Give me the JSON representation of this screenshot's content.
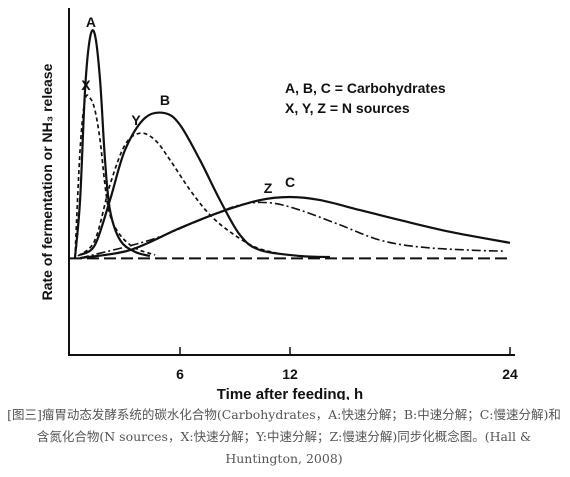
{
  "chart_data": {
    "type": "line",
    "xlabel": "Time after feeding, h",
    "ylabel": "Rate of fermentation or NH₃ release",
    "annotations": [
      "A, B, C = Carbohydrates",
      "X, Y, Z = N sources"
    ],
    "xlim": [
      0,
      24
    ],
    "xticks": [
      6,
      12,
      24
    ],
    "ylim": [
      0,
      100
    ],
    "reference_line": {
      "y": 28,
      "style": "longdash"
    },
    "series": [
      {
        "name": "A",
        "color": "#111111",
        "style": "solid",
        "x": [
          0.27,
          0.55,
          0.82,
          1.09,
          1.36,
          1.64,
          1.91,
          2.18,
          2.73,
          3.55,
          4.36
        ],
        "values": [
          28.1,
          44.9,
          76.8,
          91.9,
          92.8,
          79.7,
          56.5,
          42.0,
          33.3,
          29.9,
          28.7
        ]
      },
      {
        "name": "X",
        "color": "#111111",
        "style": "dotted",
        "x": [
          0.27,
          0.55,
          0.82,
          1.09,
          1.36,
          1.64,
          1.91,
          2.18,
          2.73,
          3.55,
          4.64
        ],
        "values": [
          28.1,
          59.4,
          73.9,
          74.5,
          71.0,
          62.3,
          49.3,
          40.6,
          34.8,
          31.0,
          29.0
        ]
      },
      {
        "name": "B",
        "color": "#111111",
        "style": "solid",
        "x": [
          0.55,
          1.36,
          2.18,
          3.0,
          4.09,
          5.18,
          6.0,
          7.09,
          8.18,
          9.27,
          10.37,
          12.55,
          14.18
        ],
        "values": [
          29.0,
          31.9,
          44.9,
          59.4,
          68.7,
          70.1,
          66.7,
          56.5,
          44.9,
          34.8,
          30.4,
          28.7,
          28.4
        ]
      },
      {
        "name": "Y",
        "color": "#111111",
        "style": "dotted",
        "x": [
          0.44,
          1.36,
          2.18,
          3.0,
          3.82,
          4.64,
          5.46,
          6.55,
          7.64,
          8.73,
          10.09,
          11.46
        ],
        "values": [
          28.7,
          33.3,
          49.3,
          60.9,
          64.3,
          62.3,
          56.5,
          47.8,
          40.6,
          35.7,
          31.3,
          29.3
        ]
      },
      {
        "name": "Z",
        "color": "#111111",
        "style": "dashdot",
        "x": [
          0.55,
          4.36,
          7.09,
          9.27,
          10.91,
          12.55,
          14.73,
          16.91,
          19.09,
          21.82,
          23.73
        ],
        "values": [
          28.1,
          33.3,
          39.1,
          43.5,
          44.1,
          42.0,
          37.7,
          33.3,
          31.3,
          30.4,
          30.1
        ]
      },
      {
        "name": "C",
        "color": "#111111",
        "style": "solid",
        "x": [
          0.55,
          3.27,
          6.0,
          8.18,
          10.37,
          12.0,
          13.64,
          15.82,
          18.0,
          20.73,
          24.0
        ],
        "values": [
          28.1,
          30.4,
          36.8,
          41.4,
          44.9,
          45.8,
          44.9,
          42.0,
          39.1,
          35.7,
          32.5
        ]
      }
    ]
  },
  "caption": "[图三]瘤胃动态发酵系统的碳水化合物(Carbohydrates，A:快速分解；B:中速分解；C:慢速分解)和含氮化合物(N sources，X:快速分解；Y:中速分解；Z:慢速分解)同步化概念图。(Hall & Huntington, 2008)"
}
